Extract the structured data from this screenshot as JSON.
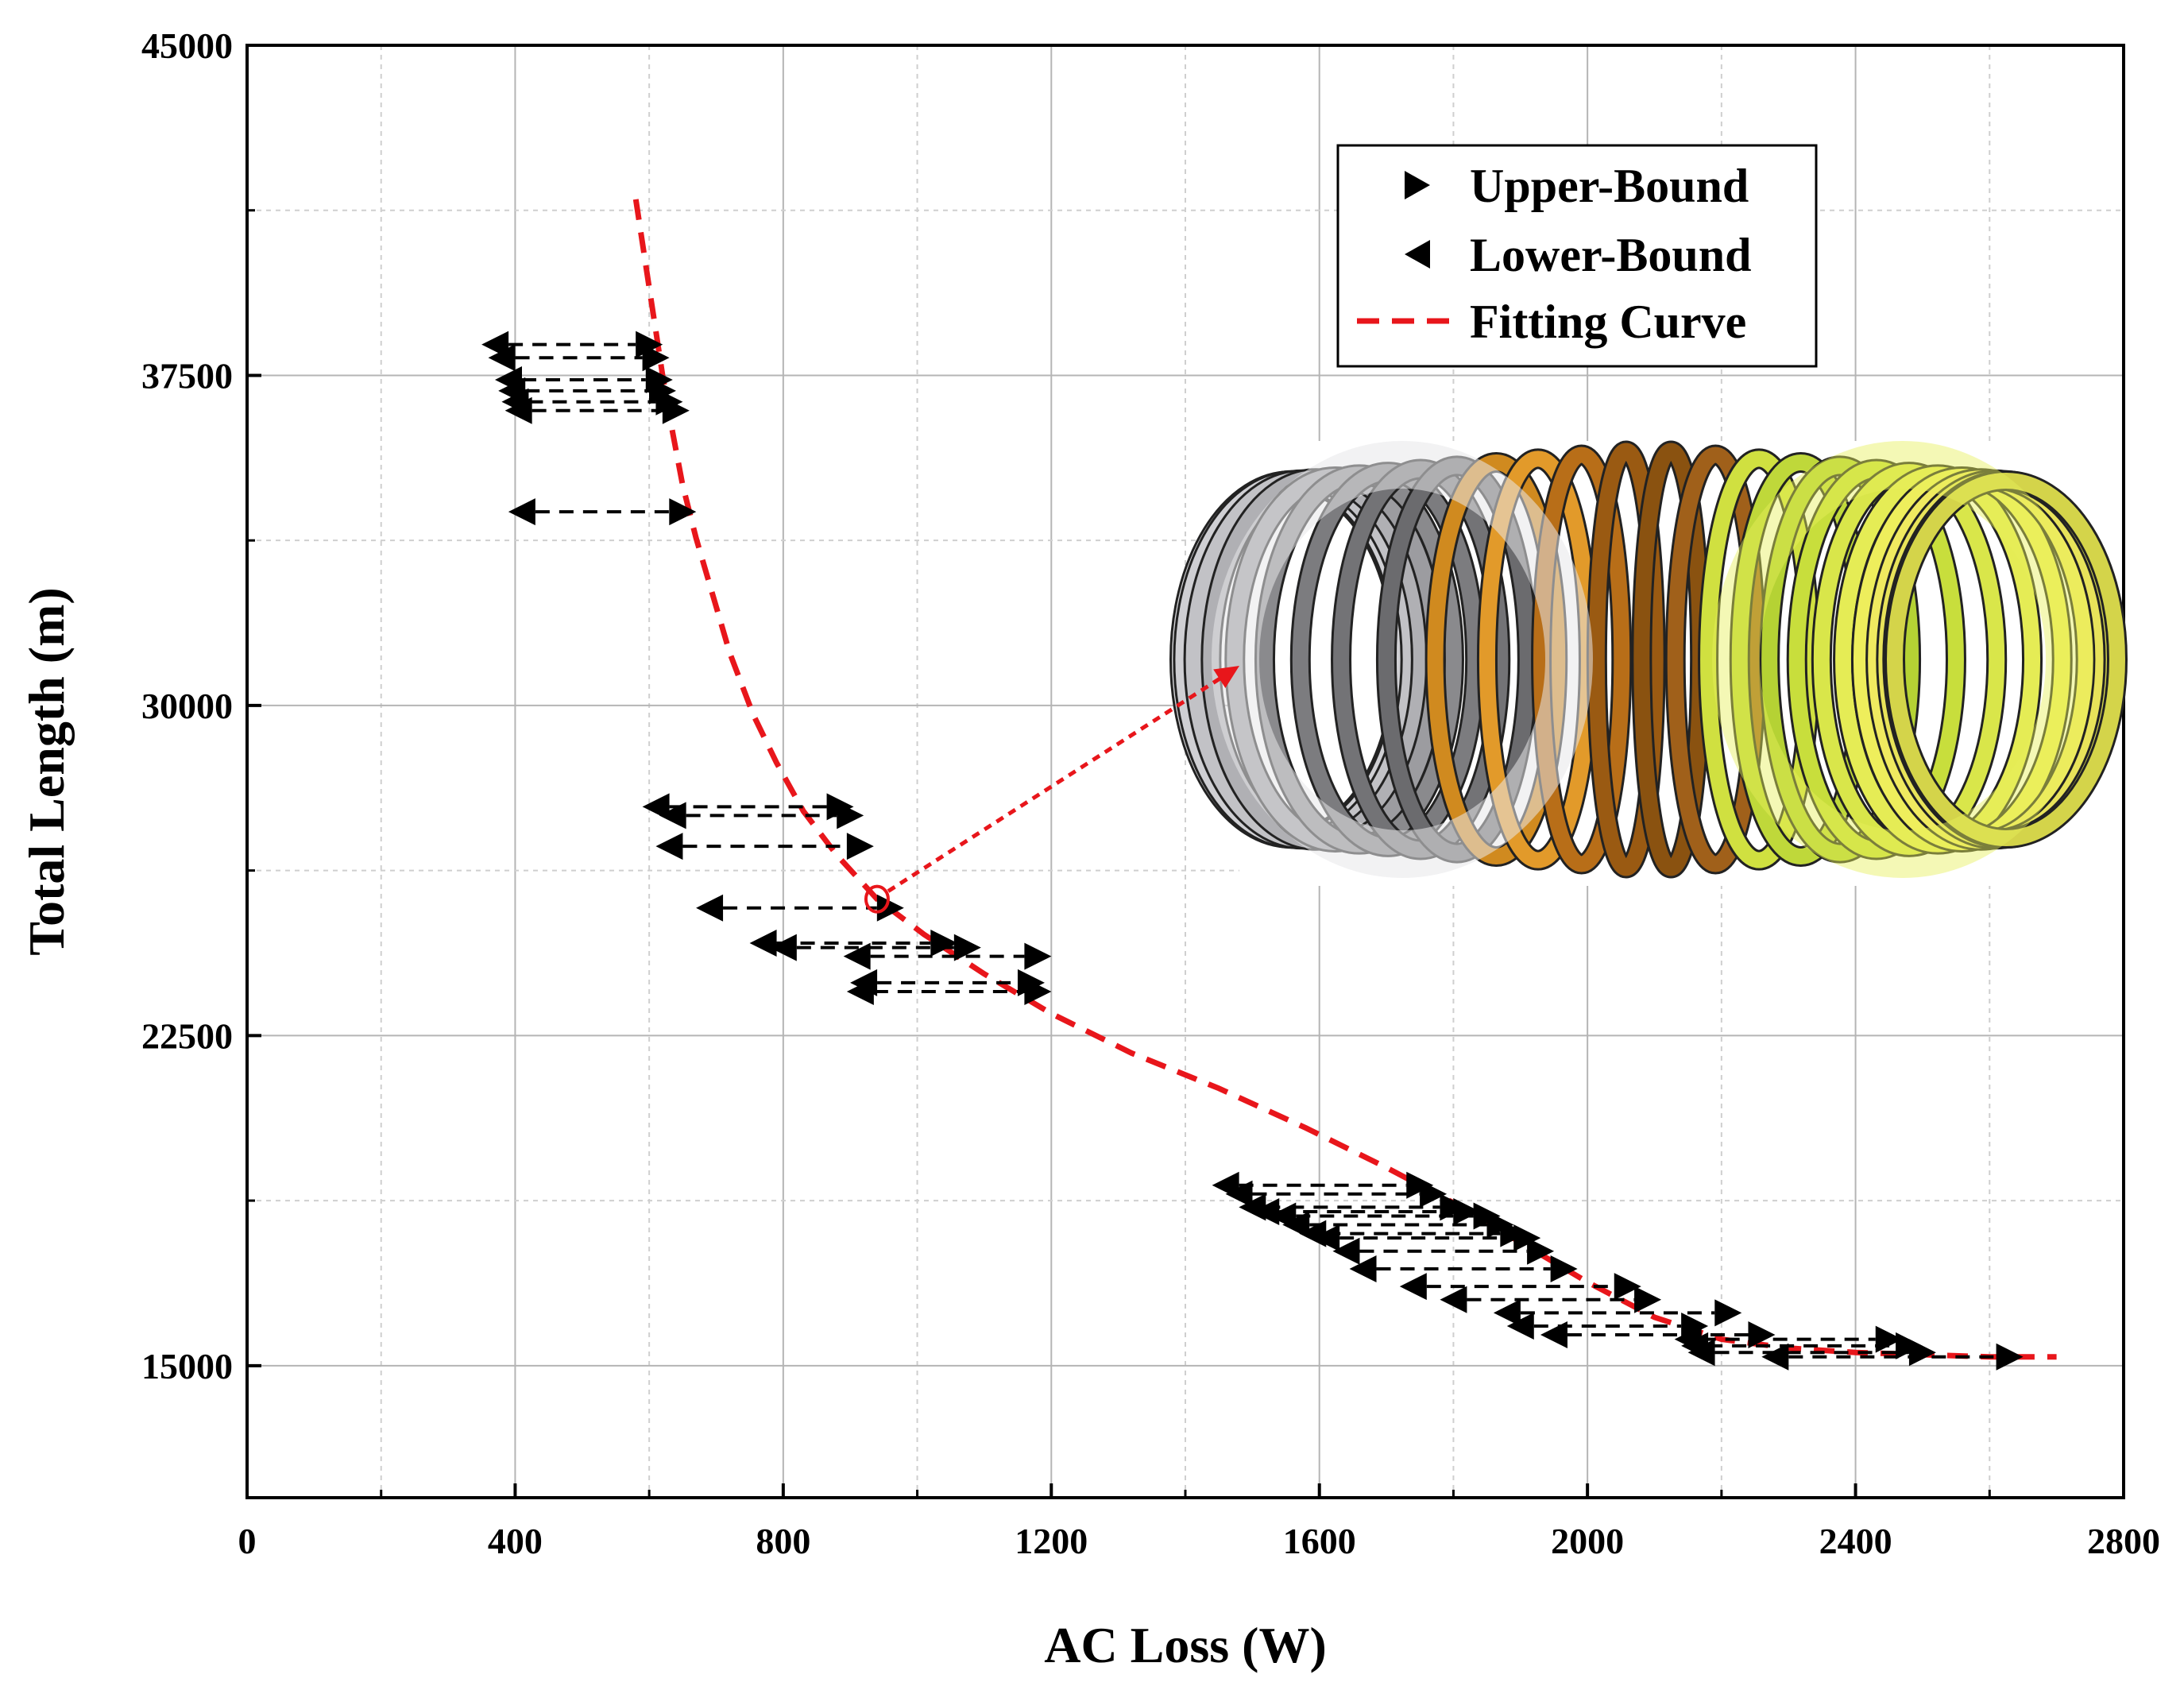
{
  "chart_data": {
    "type": "scatter",
    "xlabel": "AC Loss (W)",
    "ylabel": "Total Length (m)",
    "xlim": [
      0,
      2800
    ],
    "ylim": [
      12000,
      45000
    ],
    "xticks": [
      0,
      400,
      800,
      1200,
      1600,
      2000,
      2400,
      2800
    ],
    "yticks": [
      15000,
      22500,
      30000,
      37500,
      45000
    ],
    "grid": true,
    "legend": [
      {
        "label": "Upper-Bound",
        "marker": "triangle-right",
        "color": "#000000"
      },
      {
        "label": "Lower-Bound",
        "marker": "triangle-left",
        "color": "#000000"
      },
      {
        "label": "Fitting Curve",
        "style": "dashed",
        "color": "#e8161b"
      }
    ],
    "pairs": [
      {
        "lower": 370,
        "upper": 600,
        "length": 38200
      },
      {
        "lower": 380,
        "upper": 610,
        "length": 37900
      },
      {
        "lower": 390,
        "upper": 615,
        "length": 37400
      },
      {
        "lower": 395,
        "upper": 620,
        "length": 37150
      },
      {
        "lower": 400,
        "upper": 630,
        "length": 36900
      },
      {
        "lower": 405,
        "upper": 640,
        "length": 36700
      },
      {
        "lower": 410,
        "upper": 650,
        "length": 34400
      },
      {
        "lower": 610,
        "upper": 885,
        "length": 27700
      },
      {
        "lower": 635,
        "upper": 900,
        "length": 27500
      },
      {
        "lower": 630,
        "upper": 915,
        "length": 26800
      },
      {
        "lower": 690,
        "upper": 960,
        "length": 25400
      },
      {
        "lower": 770,
        "upper": 1040,
        "length": 24600
      },
      {
        "lower": 800,
        "upper": 1075,
        "length": 24500
      },
      {
        "lower": 910,
        "upper": 1180,
        "length": 24300
      },
      {
        "lower": 920,
        "upper": 1170,
        "length": 23700
      },
      {
        "lower": 915,
        "upper": 1180,
        "length": 23500
      },
      {
        "lower": 1460,
        "upper": 1750,
        "length": 19100
      },
      {
        "lower": 1480,
        "upper": 1770,
        "length": 18900
      },
      {
        "lower": 1500,
        "upper": 1800,
        "length": 18600
      },
      {
        "lower": 1520,
        "upper": 1820,
        "length": 18500
      },
      {
        "lower": 1545,
        "upper": 1850,
        "length": 18400
      },
      {
        "lower": 1565,
        "upper": 1870,
        "length": 18200
      },
      {
        "lower": 1590,
        "upper": 1890,
        "length": 18000
      },
      {
        "lower": 1610,
        "upper": 1910,
        "length": 17900
      },
      {
        "lower": 1640,
        "upper": 1930,
        "length": 17600
      },
      {
        "lower": 1665,
        "upper": 1965,
        "length": 17200
      },
      {
        "lower": 1740,
        "upper": 2060,
        "length": 16800
      },
      {
        "lower": 1800,
        "upper": 2090,
        "length": 16500
      },
      {
        "lower": 1880,
        "upper": 2210,
        "length": 16200
      },
      {
        "lower": 1900,
        "upper": 2160,
        "length": 15900
      },
      {
        "lower": 1950,
        "upper": 2260,
        "length": 15700
      },
      {
        "lower": 2150,
        "upper": 2450,
        "length": 15600
      },
      {
        "lower": 2160,
        "upper": 2480,
        "length": 15450
      },
      {
        "lower": 2170,
        "upper": 2500,
        "length": 15300
      },
      {
        "lower": 2280,
        "upper": 2630,
        "length": 15200
      }
    ],
    "fitting_curve": {
      "x": [
        580,
        590,
        600,
        610,
        620,
        635,
        650,
        670,
        695,
        720,
        755,
        790,
        830,
        880,
        940,
        1010,
        1100,
        1200,
        1320,
        1450,
        1580,
        1700,
        1800,
        1900,
        2000,
        2100,
        2200,
        2300,
        2400,
        2500,
        2600,
        2700
      ],
      "y": [
        41500,
        40500,
        39500,
        38500,
        37500,
        36200,
        35000,
        33800,
        32500,
        31200,
        29800,
        28700,
        27600,
        26600,
        25600,
        24800,
        23900,
        23000,
        22100,
        21300,
        20400,
        19500,
        18700,
        17800,
        16900,
        16100,
        15600,
        15400,
        15300,
        15250,
        15200,
        15200
      ]
    }
  },
  "inset": {
    "label": "toroidal-coil-3d-model"
  }
}
